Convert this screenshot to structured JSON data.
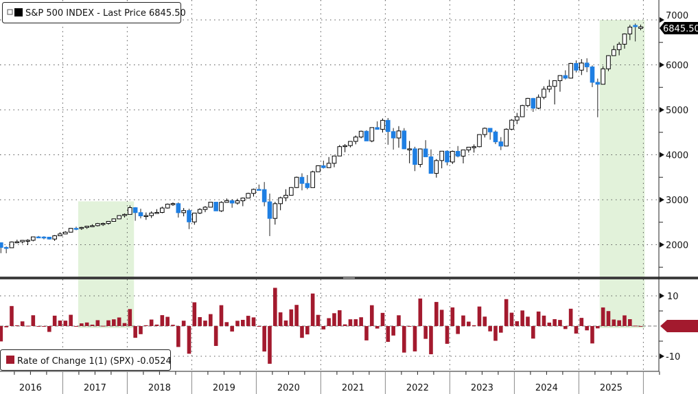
{
  "chart_data": [
    {
      "type": "candlestick",
      "legend": {
        "label": "S&P 500 INDEX - Last Price",
        "value": "6845.50"
      },
      "last_price_tag": "6845.50",
      "y_ticks": [
        2000,
        3000,
        4000,
        5000,
        6000,
        7000
      ],
      "ylim": [
        1400,
        7100
      ],
      "grid": true,
      "legend_position": "top-left",
      "colors": {
        "up_fill": "#ffffff",
        "up_border": "#000000",
        "down": "#1e7fe3",
        "shade": "#e2f2da"
      },
      "shaded_periods": [
        {
          "start": "2017-04",
          "end": "2018-01"
        },
        {
          "start": "2025-05",
          "end": "2025-12"
        }
      ],
      "start_month": "2016-01",
      "ohlc_columns": [
        "open",
        "high",
        "low",
        "close"
      ],
      "ohlc": [
        [
          2044,
          2044,
          1812,
          1940
        ],
        [
          1940,
          1962,
          1810,
          1932
        ],
        [
          1932,
          2073,
          1932,
          2060
        ],
        [
          2060,
          2111,
          2034,
          2065
        ],
        [
          2065,
          2103,
          2026,
          2097
        ],
        [
          2097,
          2121,
          1992,
          2099
        ],
        [
          2099,
          2178,
          2075,
          2174
        ],
        [
          2174,
          2194,
          2147,
          2171
        ],
        [
          2171,
          2188,
          2120,
          2168
        ],
        [
          2168,
          2169,
          2114,
          2126
        ],
        [
          2126,
          2214,
          2084,
          2199
        ],
        [
          2199,
          2278,
          2194,
          2239
        ],
        [
          2239,
          2301,
          2234,
          2279
        ],
        [
          2279,
          2371,
          2271,
          2364
        ],
        [
          2364,
          2401,
          2322,
          2363
        ],
        [
          2363,
          2398,
          2329,
          2384
        ],
        [
          2384,
          2418,
          2353,
          2412
        ],
        [
          2412,
          2454,
          2405,
          2423
        ],
        [
          2423,
          2484,
          2407,
          2470
        ],
        [
          2470,
          2491,
          2417,
          2472
        ],
        [
          2472,
          2519,
          2446,
          2519
        ],
        [
          2519,
          2582,
          2515,
          2575
        ],
        [
          2575,
          2657,
          2566,
          2648
        ],
        [
          2648,
          2695,
          2605,
          2674
        ],
        [
          2674,
          2873,
          2682,
          2824
        ],
        [
          2824,
          2835,
          2533,
          2714
        ],
        [
          2714,
          2801,
          2585,
          2641
        ],
        [
          2641,
          2717,
          2553,
          2648
        ],
        [
          2648,
          2742,
          2594,
          2705
        ],
        [
          2705,
          2791,
          2698,
          2718
        ],
        [
          2718,
          2848,
          2699,
          2816
        ],
        [
          2816,
          2916,
          2803,
          2902
        ],
        [
          2902,
          2941,
          2864,
          2914
        ],
        [
          2914,
          2940,
          2604,
          2712
        ],
        [
          2712,
          2816,
          2631,
          2760
        ],
        [
          2760,
          2800,
          2347,
          2507
        ],
        [
          2507,
          2708,
          2444,
          2704
        ],
        [
          2704,
          2813,
          2681,
          2784
        ],
        [
          2784,
          2860,
          2723,
          2834
        ],
        [
          2834,
          2949,
          2848,
          2946
        ],
        [
          2946,
          2954,
          2751,
          2752
        ],
        [
          2752,
          2965,
          2729,
          2942
        ],
        [
          2942,
          3028,
          2952,
          2980
        ],
        [
          2980,
          3014,
          2822,
          2926
        ],
        [
          2926,
          3022,
          2891,
          2977
        ],
        [
          2977,
          3050,
          2856,
          3038
        ],
        [
          3038,
          3156,
          3050,
          3141
        ],
        [
          3141,
          3248,
          3070,
          3231
        ],
        [
          3231,
          3338,
          3214,
          3226
        ],
        [
          3226,
          3394,
          2855,
          2954
        ],
        [
          2954,
          3137,
          2192,
          2585
        ],
        [
          2585,
          2954,
          2447,
          2912
        ],
        [
          2912,
          3068,
          2766,
          3044
        ],
        [
          3044,
          3233,
          2966,
          3100
        ],
        [
          3100,
          3280,
          3115,
          3271
        ],
        [
          3271,
          3515,
          3261,
          3500
        ],
        [
          3500,
          3588,
          3209,
          3363
        ],
        [
          3363,
          3550,
          3233,
          3270
        ],
        [
          3270,
          3646,
          3280,
          3622
        ],
        [
          3622,
          3760,
          3633,
          3756
        ],
        [
          3756,
          3870,
          3695,
          3714
        ],
        [
          3714,
          3950,
          3725,
          3811
        ],
        [
          3811,
          3983,
          3723,
          3973
        ],
        [
          3973,
          4218,
          3992,
          4181
        ],
        [
          4181,
          4238,
          4056,
          4204
        ],
        [
          4204,
          4302,
          4165,
          4298
        ],
        [
          4298,
          4429,
          4233,
          4395
        ],
        [
          4395,
          4538,
          4367,
          4523
        ],
        [
          4523,
          4546,
          4305,
          4308
        ],
        [
          4308,
          4608,
          4279,
          4605
        ],
        [
          4605,
          4744,
          4560,
          4567
        ],
        [
          4567,
          4808,
          4495,
          4766
        ],
        [
          4766,
          4818,
          4223,
          4516
        ],
        [
          4516,
          4595,
          4115,
          4374
        ],
        [
          4374,
          4637,
          4157,
          4530
        ],
        [
          4530,
          4593,
          4124,
          4132
        ],
        [
          4132,
          4307,
          3811,
          4132
        ],
        [
          4132,
          4178,
          3637,
          3785
        ],
        [
          3785,
          4140,
          3721,
          4130
        ],
        [
          4130,
          4325,
          3955,
          3955
        ],
        [
          3955,
          4120,
          3585,
          3586
        ],
        [
          3586,
          3905,
          3492,
          3872
        ],
        [
          3872,
          4080,
          3699,
          4080
        ],
        [
          4080,
          4101,
          3764,
          3840
        ],
        [
          3840,
          4095,
          3795,
          4077
        ],
        [
          4077,
          4195,
          3943,
          3970
        ],
        [
          3970,
          4110,
          3809,
          4109
        ],
        [
          4109,
          4170,
          4049,
          4169
        ],
        [
          4169,
          4231,
          4048,
          4180
        ],
        [
          4180,
          4458,
          4167,
          4450
        ],
        [
          4450,
          4607,
          4385,
          4589
        ],
        [
          4589,
          4590,
          4335,
          4508
        ],
        [
          4508,
          4541,
          4238,
          4288
        ],
        [
          4288,
          4393,
          4104,
          4194
        ],
        [
          4194,
          4587,
          4197,
          4568
        ],
        [
          4568,
          4793,
          4546,
          4770
        ],
        [
          4770,
          4932,
          4682,
          4846
        ],
        [
          4846,
          5112,
          4845,
          5096
        ],
        [
          5096,
          5265,
          5056,
          5254
        ],
        [
          5254,
          5264,
          4954,
          5036
        ],
        [
          5036,
          5342,
          5012,
          5278
        ],
        [
          5278,
          5524,
          5234,
          5460
        ],
        [
          5460,
          5669,
          5390,
          5522
        ],
        [
          5522,
          5652,
          5120,
          5648
        ],
        [
          5648,
          5768,
          5403,
          5762
        ],
        [
          5762,
          5879,
          5675,
          5705
        ],
        [
          5705,
          6044,
          5696,
          6032
        ],
        [
          6032,
          6100,
          5832,
          5882
        ],
        [
          5882,
          6128,
          5773,
          6041
        ],
        [
          6041,
          6147,
          5838,
          5955
        ],
        [
          5955,
          5987,
          5505,
          5612
        ],
        [
          5612,
          5695,
          4835,
          5569
        ],
        [
          5569,
          5969,
          5578,
          5912
        ],
        [
          5912,
          6215,
          5861,
          6205
        ],
        [
          6205,
          6428,
          6201,
          6339
        ],
        [
          6339,
          6509,
          6212,
          6460
        ],
        [
          6460,
          6700,
          6360,
          6688
        ],
        [
          6688,
          6890,
          6551,
          6840
        ],
        [
          6878,
          6920,
          6521,
          6849
        ],
        [
          6812,
          6895,
          6770,
          6845.5
        ]
      ],
      "prev_close": 2044
    },
    {
      "type": "bar",
      "legend": {
        "label": "Rate of Change 1(1) (SPX)",
        "value": "-0.0524"
      },
      "derived_from": "monthly percent change of S&P 500 close",
      "y_ticks": [
        -10,
        10
      ],
      "ylim": [
        -14,
        14
      ],
      "color": "#a31a2e"
    }
  ],
  "x_axis": {
    "years": [
      "2016",
      "2017",
      "2018",
      "2019",
      "2020",
      "2021",
      "2022",
      "2023",
      "2024",
      "2025"
    ]
  }
}
